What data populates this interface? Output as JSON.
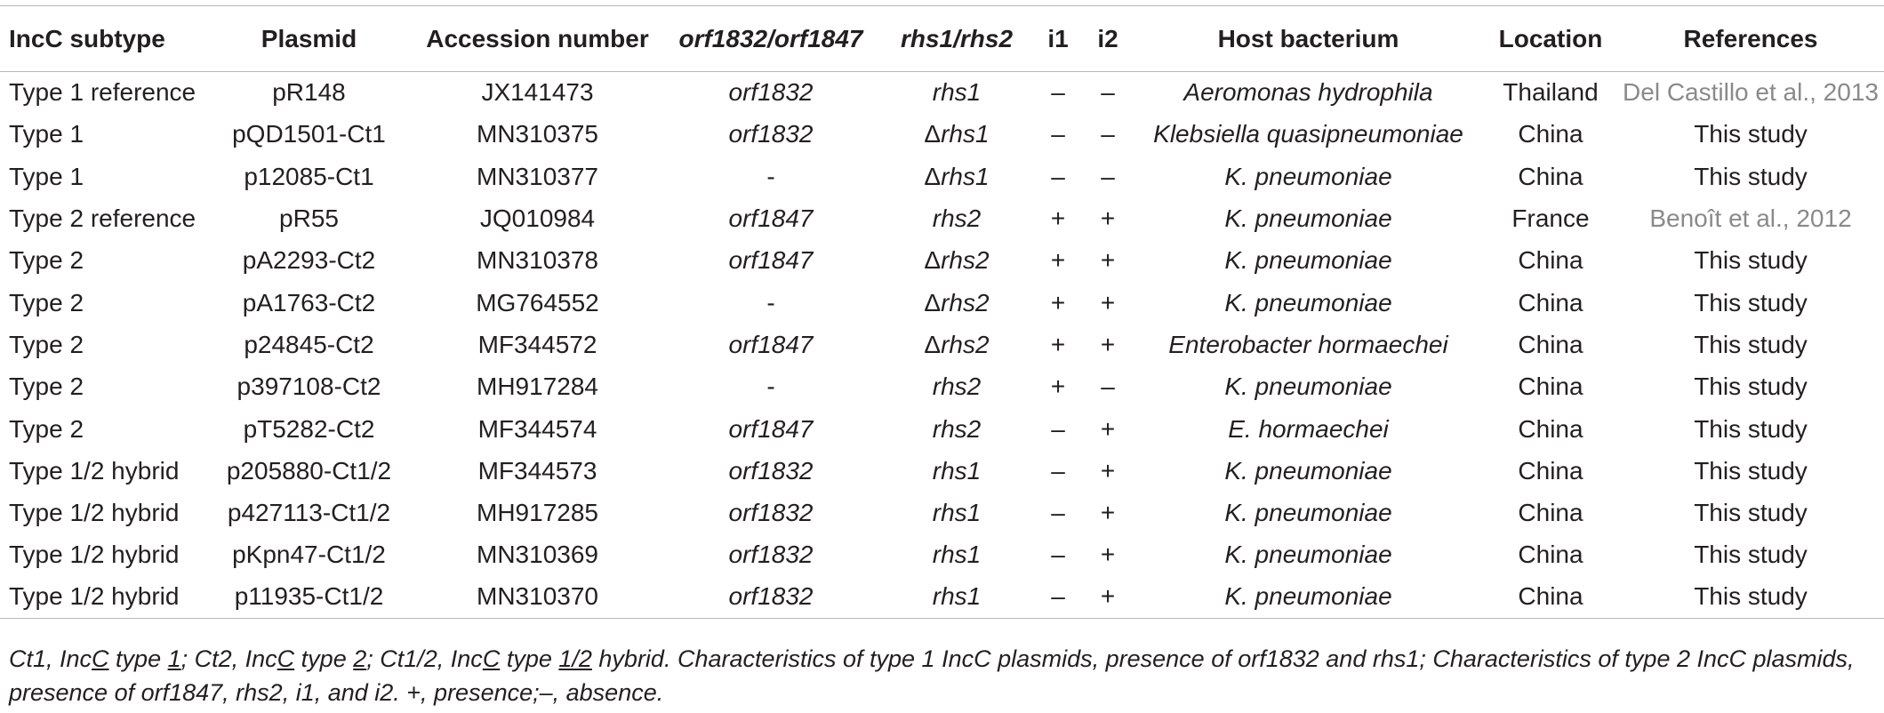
{
  "table": {
    "headers": [
      "IncC subtype",
      "Plasmid",
      "Accession number",
      "orf1832/orf1847",
      "rhs1/rhs2",
      "i1",
      "i2",
      "Host bacterium",
      "Location",
      "References"
    ],
    "rows": [
      [
        "Type 1 reference",
        "pR148",
        "JX141473",
        "orf1832",
        "rhs1",
        "–",
        "–",
        "Aeromonas hydrophila",
        "Thailand",
        "Del Castillo et al., 2013"
      ],
      [
        "Type 1",
        "pQD1501-Ct1",
        "MN310375",
        "orf1832",
        "Δrhs1",
        "–",
        "–",
        "Klebsiella quasipneumoniae",
        "China",
        "This study"
      ],
      [
        "Type 1",
        "p12085-Ct1",
        "MN310377",
        "-",
        "Δrhs1",
        "–",
        "–",
        "K. pneumoniae",
        "China",
        "This study"
      ],
      [
        "Type 2 reference",
        "pR55",
        "JQ010984",
        "orf1847",
        "rhs2",
        "+",
        "+",
        "K. pneumoniae",
        "France",
        "Benoît et al., 2012"
      ],
      [
        "Type 2",
        "pA2293-Ct2",
        "MN310378",
        "orf1847",
        "Δrhs2",
        "+",
        "+",
        "K. pneumoniae",
        "China",
        "This study"
      ],
      [
        "Type 2",
        "pA1763-Ct2",
        "MG764552",
        "-",
        "Δrhs2",
        "+",
        "+",
        "K. pneumoniae",
        "China",
        "This study"
      ],
      [
        "Type 2",
        "p24845-Ct2",
        "MF344572",
        "orf1847",
        "Δrhs2",
        "+",
        "+",
        "Enterobacter hormaechei",
        "China",
        "This study"
      ],
      [
        "Type 2",
        "p397108-Ct2",
        "MH917284",
        "-",
        "rhs2",
        "+",
        "–",
        "K. pneumoniae",
        "China",
        "This study"
      ],
      [
        "Type 2",
        "pT5282-Ct2",
        "MF344574",
        "orf1847",
        "rhs2",
        "–",
        "+",
        "E. hormaechei",
        "China",
        "This study"
      ],
      [
        "Type 1/2 hybrid",
        "p205880-Ct1/2",
        "MF344573",
        "orf1832",
        "rhs1",
        "–",
        "+",
        "K. pneumoniae",
        "China",
        "This study"
      ],
      [
        "Type 1/2 hybrid",
        "p427113-Ct1/2",
        "MH917285",
        "orf1832",
        "rhs1",
        "–",
        "+",
        "K. pneumoniae",
        "China",
        "This study"
      ],
      [
        "Type 1/2 hybrid",
        "pKpn47-Ct1/2",
        "MN310369",
        "orf1832",
        "rhs1",
        "–",
        "+",
        "K. pneumoniae",
        "China",
        "This study"
      ],
      [
        "Type 1/2 hybrid",
        "p11935-Ct1/2",
        "MN310370",
        "orf1832",
        "rhs1",
        "–",
        "+",
        "K. pneumoniae",
        "China",
        "This study"
      ]
    ]
  },
  "footnote": {
    "p1": "Ct1, Inc",
    "u1": "C",
    "p2": " type ",
    "u2": "1",
    "p3": "; Ct2, Inc",
    "u3": "C",
    "p4": " type ",
    "u4": "2",
    "p5": "; Ct1/2, Inc",
    "u5": "C",
    "p6": " type ",
    "u6": "1/2",
    "p7": " hybrid. Characteristics of type 1 IncC plasmids, presence of orf1832 and rhs1; Characteristics of type 2 IncC plasmids, presence of orf1847, rhs2, i1, and i2. +, presence;–, absence."
  },
  "colors": {
    "text": "#231f20",
    "rule": "#b8b8b8",
    "reference_link": "#8a8a8a"
  }
}
